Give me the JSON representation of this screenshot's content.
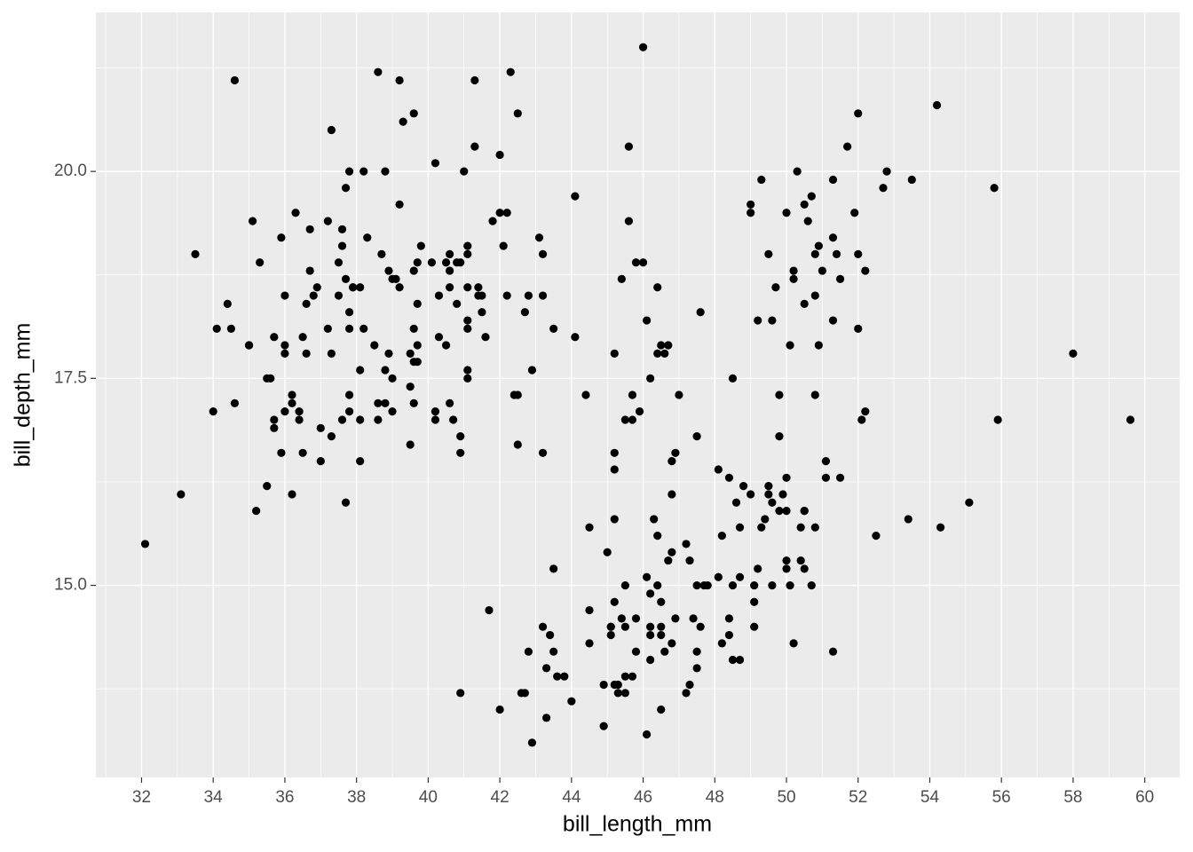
{
  "chart_data": {
    "type": "scatter",
    "color": "#000000",
    "grid": true,
    "x_label": "bill_length_mm",
    "y_label": "bill_depth_mm",
    "xlim": [
      30.725,
      60.975
    ],
    "ylim": [
      12.68,
      21.92
    ],
    "xticks": [
      32,
      34,
      36,
      38,
      40,
      42,
      44,
      46,
      48,
      50,
      52,
      54,
      56,
      58,
      60
    ],
    "yticks": [
      {
        "value": 15,
        "label": "15.0"
      },
      {
        "value": 17.5,
        "label": "17.5"
      },
      {
        "value": 20,
        "label": "20.0"
      }
    ],
    "x": [
      39.1,
      39.5,
      40.3,
      36.7,
      39.3,
      38.9,
      39.2,
      34.1,
      42,
      37.8,
      37.8,
      41.1,
      38.6,
      34.6,
      36.6,
      38.7,
      42.5,
      34.4,
      46,
      37.8,
      37.7,
      35.9,
      38.2,
      38.8,
      35.3,
      40.6,
      40.5,
      37.9,
      40.5,
      39.5,
      37.2,
      39.5,
      40.9,
      36.4,
      39.2,
      38.8,
      42.2,
      37.6,
      39.8,
      36.5,
      40.8,
      36,
      44.1,
      37,
      39.6,
      41.1,
      37.5,
      36,
      42.3,
      39.6,
      40.1,
      35,
      42,
      34.5,
      41.4,
      39,
      40.6,
      36.5,
      37.6,
      35.7,
      41.3,
      37.6,
      41.1,
      36.4,
      41.6,
      35.5,
      41.1,
      35.9,
      41.8,
      33.5,
      39.7,
      39.6,
      45.8,
      35.5,
      42.8,
      40.9,
      37.2,
      36.2,
      42.1,
      34.6,
      42.9,
      36.7,
      35.1,
      37.3,
      41.3,
      36.3,
      36.9,
      38.3,
      38.9,
      35.7,
      41.1,
      34,
      39.6,
      36.2,
      40.8,
      38.1,
      40.3,
      33.1,
      43.2,
      35,
      41,
      37.7,
      37.8,
      37.9,
      39.7,
      38.6,
      38.2,
      38.1,
      43.2,
      38.1,
      45.6,
      39.7,
      42.2,
      39.6,
      42.7,
      38.6,
      37.3,
      35.7,
      41.1,
      36.2,
      37.7,
      40.2,
      41.4,
      35.2,
      40.6,
      38.8,
      41.5,
      39,
      44.1,
      38.5,
      43.1,
      36.8,
      37.5,
      38.1,
      41.1,
      35.6,
      40.2,
      37,
      39.7,
      40.2,
      40.6,
      32.1,
      40.7,
      37.3,
      39,
      39.2,
      36.6,
      36,
      37.8,
      36,
      41.5,
      46.1,
      50,
      48.7,
      50,
      47.6,
      46.5,
      45.4,
      46.7,
      43.3,
      46.8,
      40.9,
      49,
      45.5,
      48.4,
      45.8,
      49.3,
      42,
      49.2,
      46.2,
      48.7,
      50.2,
      45.1,
      46.5,
      46.3,
      42.9,
      46.1,
      44.5,
      47.8,
      48.2,
      50,
      47.3,
      42.8,
      45.1,
      59.6,
      49.1,
      48.4,
      42.6,
      44.4,
      44,
      48.7,
      42.7,
      49.6,
      45.3,
      49.6,
      50.5,
      43.6,
      45.5,
      50.5,
      44.9,
      45.2,
      46.6,
      48.5,
      45.1,
      50.1,
      46.5,
      45,
      43.8,
      45.5,
      43.2,
      50.4,
      45.3,
      46.2,
      45.7,
      54.3,
      45.8,
      49.8,
      46.2,
      49.5,
      43.5,
      50.7,
      47.7,
      46.4,
      48.2,
      46.5,
      46.4,
      48.6,
      47.5,
      51.1,
      45.2,
      45.2,
      49.1,
      52.5,
      47.4,
      50,
      44.9,
      50.8,
      43.4,
      51.3,
      47.5,
      52.1,
      47.5,
      52.2,
      45.5,
      49.5,
      44.5,
      50.8,
      49.4,
      46.9,
      48.4,
      51.1,
      48.5,
      55.9,
      47.2,
      49.1,
      47.3,
      46.8,
      41.7,
      53.4,
      43.3,
      48.1,
      50.5,
      49.8,
      43.5,
      51.5,
      46.2,
      55.1,
      44.5,
      48.8,
      47.2,
      46.8,
      50.4,
      45.2,
      49.9,
      46.5,
      50,
      51.3,
      45.4,
      52.7,
      45.2,
      46.1,
      51.3,
      46,
      51.3,
      46.6,
      51.7,
      47,
      52,
      45.9,
      50.5,
      50.3,
      58,
      46.4,
      49.2,
      42.4,
      48.5,
      43.2,
      50.6,
      46.7,
      52,
      50.5,
      49.5,
      46.4,
      52.8,
      40.9,
      54.2,
      42.5,
      51,
      49.7,
      47.5,
      47.6,
      52,
      46.9,
      53.5,
      49,
      46.2,
      50.9,
      45.5,
      50.9,
      50.8,
      50.1,
      49,
      51.5,
      49.8,
      48.1,
      51.4,
      45.7,
      50.7,
      42.5,
      52.2,
      45.2,
      49.3,
      50.2,
      45.6,
      51.9,
      46.8,
      45.7,
      55.8,
      43.5,
      49.6,
      50.8,
      50.2
    ],
    "y": [
      18.7,
      17.4,
      18,
      19.3,
      20.6,
      17.8,
      19.6,
      18.1,
      20.2,
      17.1,
      17.3,
      17.6,
      21.2,
      21.1,
      17.8,
      19,
      20.7,
      18.4,
      21.5,
      18.3,
      18.7,
      19.2,
      18.1,
      17.2,
      18.9,
      18.6,
      17.9,
      18.6,
      18.9,
      16.7,
      18.1,
      17.8,
      18.9,
      17,
      21.1,
      20,
      18.5,
      19.3,
      19.1,
      18,
      18.4,
      18.5,
      19.7,
      16.9,
      18.8,
      19,
      18.9,
      17.9,
      21.2,
      17.7,
      18.9,
      17.9,
      19.5,
      18.1,
      18.6,
      17.5,
      18.8,
      16.6,
      19.1,
      16.9,
      21.1,
      17,
      18.2,
      17.1,
      18,
      16.2,
      19.1,
      16.6,
      19.4,
      19,
      18.4,
      17.2,
      18.9,
      17.5,
      18.5,
      16.8,
      19.4,
      16.1,
      19.1,
      17.2,
      17.6,
      18.8,
      19.4,
      17.8,
      20.3,
      19.5,
      18.6,
      19.2,
      18.8,
      18,
      18.1,
      17.1,
      18.1,
      17.3,
      18.9,
      18.6,
      18.5,
      16.1,
      18.5,
      17.9,
      20,
      16,
      20,
      18.6,
      18.9,
      17.2,
      20,
      17,
      19,
      16.5,
      20.3,
      17.7,
      19.5,
      20.7,
      18.3,
      17,
      20.5,
      17,
      18.6,
      17.2,
      19.8,
      17,
      18.5,
      15.9,
      19,
      17.6,
      18.3,
      17.1,
      18,
      17.9,
      19.2,
      18.5,
      18.5,
      17.6,
      17.5,
      17.5,
      20.1,
      16.5,
      17.9,
      17.1,
      17.2,
      15.5,
      17,
      16.8,
      18.7,
      18.6,
      18.4,
      17.8,
      18.1,
      17.1,
      18.5,
      13.2,
      16.3,
      14.1,
      15.2,
      14.5,
      13.5,
      14.6,
      15.3,
      13.4,
      15.4,
      13.7,
      16.1,
      13.7,
      14.6,
      14.6,
      15.7,
      13.5,
      15.2,
      14.5,
      15.1,
      14.3,
      14.5,
      14.5,
      15.8,
      13.1,
      15.1,
      14.3,
      15,
      14.3,
      15.3,
      15.3,
      14.2,
      14.5,
      17,
      14.8,
      16.3,
      13.7,
      17.3,
      13.6,
      15.7,
      13.7,
      16,
      13.7,
      15,
      15.9,
      13.9,
      13.9,
      15.9,
      13.3,
      15.8,
      14.2,
      14.1,
      14.4,
      15,
      14.4,
      15.4,
      13.9,
      15,
      14.5,
      15.3,
      13.8,
      14.9,
      13.9,
      15.7,
      14.2,
      16.8,
      14.4,
      16.2,
      14.2,
      15,
      15,
      15.6,
      15.6,
      14.8,
      15,
      16,
      14.2,
      16.3,
      13.8,
      16.4,
      14.5,
      15.6,
      14.6,
      15.9,
      13.8,
      17.3,
      14.4,
      14.2,
      14,
      17,
      15,
      17.1,
      14.5,
      16.1,
      14.7,
      15.7,
      15.8,
      14.6,
      14.4,
      16.5,
      15,
      17,
      15.5,
      15,
      13.8,
      16.1,
      14.7,
      15.8,
      14,
      15.1,
      15.2,
      15.9,
      15.2,
      16.3,
      14.1,
      16,
      15.7,
      16.2,
      13.7,
      14.3,
      15.7,
      14.8,
      16.1,
      17.9,
      19.5,
      19.2,
      18.7,
      19.8,
      17.8,
      18.2,
      18.2,
      18.9,
      19.9,
      17.8,
      20.3,
      17.3,
      18.1,
      17.1,
      19.6,
      20,
      17.8,
      18.6,
      18.2,
      17.3,
      17.5,
      16.6,
      19.4,
      17.9,
      19,
      18.4,
      19,
      17.8,
      20,
      16.6,
      20.8,
      16.7,
      18.8,
      18.6,
      16.8,
      18.3,
      20.7,
      16.6,
      19.9,
      19.5,
      17.5,
      19.1,
      17,
      17.9,
      18.5,
      17.9,
      19.6,
      18.7,
      17.3,
      16.4,
      19,
      17.3,
      19.7,
      17.3,
      18.8,
      16.6,
      19.9,
      18.8,
      19.4,
      19.5,
      16.5,
      17,
      19.8,
      18.1,
      18.2,
      19,
      18.7
    ]
  }
}
